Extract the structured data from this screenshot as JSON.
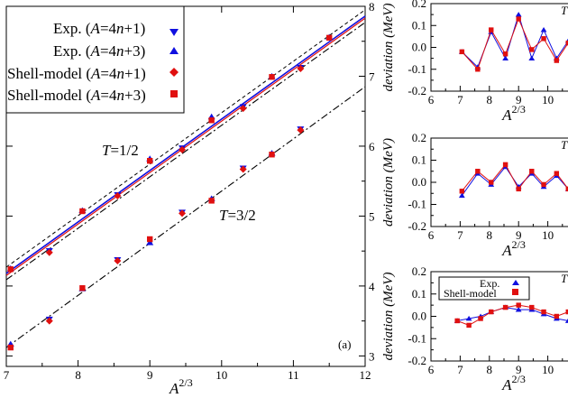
{
  "main": {
    "xlabel_base": "A",
    "xlabel_exp": "2/3",
    "x_ticks": [
      "7",
      "8",
      "9",
      "10",
      "11",
      "12"
    ],
    "y_right_ticks": [
      "3",
      "4",
      "5",
      "6",
      "7",
      "8"
    ],
    "xlim": [
      7,
      12
    ],
    "ylim": [
      2.85,
      8.0
    ],
    "legend": [
      {
        "text": "Exp. (A=4n+1)",
        "marker": "tri-down",
        "color": "#1010e0"
      },
      {
        "text": "Exp. (A=4n+3)",
        "marker": "tri-up",
        "color": "#1010e0"
      },
      {
        "text": "Shell-model (A=4n+1)",
        "marker": "diamond",
        "color": "#e01010"
      },
      {
        "text": "Shell-model (A=4n+3)",
        "marker": "square",
        "color": "#e01010"
      }
    ],
    "annotations": {
      "t_half": "T=1/2",
      "t_three_half": "T=3/2",
      "panel": "(a)"
    }
  },
  "chart_data": [
    {
      "type": "scatter",
      "xlabel": "A^(2/3)",
      "xlim": [
        7,
        12
      ],
      "ylim": [
        2.85,
        8.0
      ],
      "series": [
        {
          "name": "Exp. (A=4n+1)",
          "x": [
            7.6,
            8.55,
            9.45,
            10.3,
            11.1
          ],
          "y": [
            4.5,
            5.3,
            5.97,
            6.56,
            7.12
          ]
        },
        {
          "name": "Exp. (A=4n+3)",
          "x": [
            7.06,
            8.06,
            9.0,
            9.86,
            10.7,
            11.5
          ],
          "y": [
            4.25,
            5.08,
            5.82,
            6.42,
            7.0,
            7.56
          ]
        },
        {
          "name": "Shell-model (A=4n+1)",
          "x": [
            7.6,
            8.55,
            9.45,
            10.3,
            11.1
          ],
          "y": [
            4.48,
            5.29,
            5.95,
            6.54,
            7.11
          ]
        },
        {
          "name": "Shell-model (A=4n+3)",
          "x": [
            7.06,
            8.06,
            9.0,
            9.86,
            10.7,
            11.5
          ],
          "y": [
            4.24,
            5.07,
            5.79,
            6.37,
            6.99,
            7.55
          ]
        },
        {
          "name": "Exp. T=3/2 (A=4n+1)",
          "x": [
            7.6,
            8.55,
            9.45,
            10.3,
            11.1
          ],
          "y": [
            3.52,
            4.37,
            5.05,
            5.68,
            6.24
          ]
        },
        {
          "name": "Exp. T=3/2 (A=4n+3)",
          "x": [
            7.06,
            8.06,
            9.0,
            9.86,
            10.7
          ],
          "y": [
            3.17,
            3.96,
            4.62,
            5.25,
            5.9
          ]
        },
        {
          "name": "Shell-model T=3/2 (A=4n+1)",
          "x": [
            7.6,
            8.55,
            9.45,
            10.3,
            11.1
          ],
          "y": [
            3.5,
            4.36,
            5.04,
            5.67,
            6.23
          ]
        },
        {
          "name": "Shell-model T=3/2 (A=4n+3)",
          "x": [
            7.06,
            8.06,
            9.0,
            9.86,
            10.7
          ],
          "y": [
            3.12,
            3.97,
            4.67,
            5.22,
            5.88
          ]
        }
      ],
      "lines": [
        {
          "style": "solid-blue",
          "x": [
            7,
            12
          ],
          "y": [
            4.18,
            7.86
          ]
        },
        {
          "style": "solid-red",
          "x": [
            7,
            12
          ],
          "y": [
            4.15,
            7.83
          ]
        },
        {
          "style": "dashed",
          "x": [
            7,
            12
          ],
          "y": [
            4.27,
            7.95
          ]
        },
        {
          "style": "dashdot",
          "x": [
            7,
            12
          ],
          "y": [
            4.09,
            7.77
          ]
        },
        {
          "style": "dashdot",
          "x": [
            7,
            12
          ],
          "y": [
            3.12,
            6.85
          ]
        }
      ]
    },
    {
      "type": "line",
      "ylabel": "deviation (MeV)",
      "xlabel": "A^(2/3)",
      "xlim": [
        6,
        11
      ],
      "ylim": [
        -0.2,
        0.2
      ],
      "x_ticks": [
        "6",
        "7",
        "8",
        "9",
        "10",
        "1"
      ],
      "y_ticks": [
        "-0.2",
        "-0.1",
        "0.0",
        "0.1",
        "0.2"
      ],
      "corner_label": "T",
      "series": [
        {
          "name": "Exp.",
          "x": [
            7.06,
            7.6,
            8.06,
            8.55,
            9.0,
            9.45,
            9.86,
            10.3,
            10.7,
            11.1
          ],
          "y": [
            -0.02,
            -0.09,
            0.07,
            -0.05,
            0.15,
            -0.05,
            0.08,
            -0.05,
            0.03,
            -0.09
          ]
        },
        {
          "name": "Shell-model",
          "x": [
            7.06,
            7.6,
            8.06,
            8.55,
            9.0,
            9.45,
            9.86,
            10.3,
            10.7,
            11.1
          ],
          "y": [
            -0.02,
            -0.1,
            0.08,
            -0.03,
            0.13,
            -0.01,
            0.04,
            -0.06,
            0.02,
            -0.09
          ]
        }
      ]
    },
    {
      "type": "line",
      "ylabel": "deviation (MeV)",
      "xlabel": "A^(2/3)",
      "xlim": [
        6,
        11
      ],
      "ylim": [
        -0.2,
        0.2
      ],
      "x_ticks": [
        "6",
        "7",
        "8",
        "9",
        "10",
        "1"
      ],
      "y_ticks": [
        "-0.2",
        "-0.1",
        "0.0",
        "0.1",
        "0.2"
      ],
      "corner_label": "T",
      "series": [
        {
          "name": "Exp.",
          "x": [
            7.06,
            7.6,
            8.06,
            8.55,
            9.0,
            9.45,
            9.86,
            10.3,
            10.7,
            11.1
          ],
          "y": [
            -0.06,
            0.04,
            -0.01,
            0.07,
            -0.02,
            0.04,
            -0.02,
            0.03,
            -0.03,
            -0.01
          ]
        },
        {
          "name": "Shell-model",
          "x": [
            7.06,
            7.6,
            8.06,
            8.55,
            9.0,
            9.45,
            9.86,
            10.3,
            10.7,
            11.1
          ],
          "y": [
            -0.04,
            0.05,
            0.0,
            0.08,
            -0.03,
            0.05,
            -0.01,
            0.04,
            -0.03,
            0.0
          ]
        }
      ]
    },
    {
      "type": "line",
      "ylabel": "deviation (MeV)",
      "xlabel": "A^(2/3)",
      "xlim": [
        6,
        11
      ],
      "ylim": [
        -0.2,
        0.2
      ],
      "x_ticks": [
        "6",
        "7",
        "8",
        "9",
        "10",
        "1"
      ],
      "y_ticks": [
        "-0.2",
        "-0.1",
        "0.0",
        "0.1",
        "0.2"
      ],
      "corner_label": "T",
      "legend": [
        "Exp.",
        "Shell-model"
      ],
      "series": [
        {
          "name": "Exp.",
          "x": [
            6.9,
            7.3,
            7.7,
            8.06,
            8.55,
            9.0,
            9.45,
            9.86,
            10.3,
            10.7,
            11.1
          ],
          "y": [
            -0.02,
            -0.01,
            0.0,
            0.02,
            0.04,
            0.03,
            0.03,
            0.01,
            -0.01,
            -0.02,
            -0.04
          ]
        },
        {
          "name": "Shell-model",
          "x": [
            6.9,
            7.3,
            7.7,
            8.06,
            8.55,
            9.0,
            9.45,
            9.86,
            10.3,
            10.7,
            11.1
          ],
          "y": [
            -0.02,
            -0.04,
            -0.01,
            0.02,
            0.04,
            0.05,
            0.04,
            0.02,
            0.0,
            0.02,
            0.02
          ]
        }
      ]
    }
  ]
}
